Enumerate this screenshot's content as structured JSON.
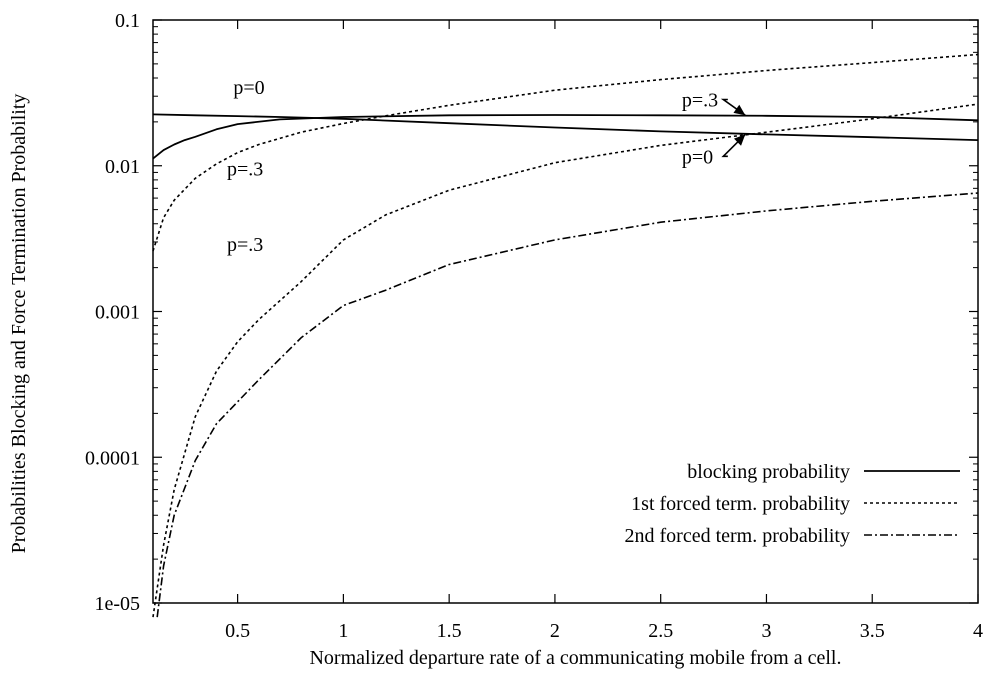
{
  "chart_data": {
    "type": "line",
    "xlabel": "Normalized departure rate of a communicating mobile from a cell.",
    "ylabel": "Probabilities Blocking and Force Termination Probability",
    "xlim": [
      0.1,
      4
    ],
    "ylim": [
      1e-05,
      0.1
    ],
    "y_scale": "log",
    "grid": false,
    "legend_position": "bottom-right",
    "x_ticks": [
      {
        "value": 0.5,
        "label": "0.5"
      },
      {
        "value": 1,
        "label": "1"
      },
      {
        "value": 1.5,
        "label": "1.5"
      },
      {
        "value": 2,
        "label": "2"
      },
      {
        "value": 2.5,
        "label": "2.5"
      },
      {
        "value": 3,
        "label": "3"
      },
      {
        "value": 3.5,
        "label": "3.5"
      },
      {
        "value": 4,
        "label": "4"
      }
    ],
    "y_ticks": [
      {
        "value": 0.1,
        "label": "0.1"
      },
      {
        "value": 0.01,
        "label": "0.01"
      },
      {
        "value": 0.001,
        "label": "0.001"
      },
      {
        "value": 0.0001,
        "label": "0.0001"
      },
      {
        "value": 1e-05,
        "label": "1e-05"
      }
    ],
    "legend": [
      {
        "label": "blocking probability",
        "style": "solid"
      },
      {
        "label": "1st forced term. probability",
        "style": "dotted"
      },
      {
        "label": "2nd forced term. probability",
        "style": "dashdot"
      }
    ],
    "series": [
      {
        "legend_index": 0,
        "style": "solid",
        "x": [
          0.1,
          0.3,
          0.5,
          0.7,
          1.0,
          1.5,
          2.0,
          2.5,
          3.0,
          3.5,
          4.0
        ],
        "y": [
          0.0225,
          0.0222,
          0.0219,
          0.0216,
          0.021,
          0.0196,
          0.0183,
          0.0172,
          0.0164,
          0.0157,
          0.015
        ]
      },
      {
        "legend_index": 0,
        "style": "solid",
        "x": [
          0.1,
          0.15,
          0.2,
          0.25,
          0.3,
          0.4,
          0.5,
          0.7,
          1.0,
          1.5,
          2.0,
          2.5,
          3.0,
          3.5,
          4.0
        ],
        "y": [
          0.0112,
          0.0128,
          0.014,
          0.015,
          0.0158,
          0.0178,
          0.0193,
          0.0208,
          0.0216,
          0.0222,
          0.0223,
          0.0222,
          0.022,
          0.0216,
          0.0205
        ]
      },
      {
        "legend_index": 1,
        "style": "dotted",
        "x": [
          0.1,
          0.15,
          0.2,
          0.3,
          0.4,
          0.5,
          0.6,
          0.8,
          1.0,
          1.2,
          1.5,
          2.0,
          2.5,
          3.0,
          3.5,
          4.0
        ],
        "y": [
          0.0026,
          0.0044,
          0.0058,
          0.0082,
          0.0103,
          0.0123,
          0.014,
          0.017,
          0.0195,
          0.022,
          0.026,
          0.033,
          0.039,
          0.045,
          0.051,
          0.058
        ]
      },
      {
        "legend_index": 1,
        "style": "dotted",
        "x": [
          0.1,
          0.15,
          0.2,
          0.3,
          0.4,
          0.5,
          0.6,
          0.8,
          1.0,
          1.2,
          1.5,
          2.0,
          2.5,
          3.0,
          3.5,
          4.0
        ],
        "y": [
          8e-06,
          2.5e-05,
          6e-05,
          0.00019,
          0.00039,
          0.00062,
          0.00088,
          0.0016,
          0.0031,
          0.0046,
          0.0068,
          0.0105,
          0.0138,
          0.017,
          0.021,
          0.0265
        ]
      },
      {
        "legend_index": 2,
        "style": "dashdot",
        "x": [
          0.12,
          0.15,
          0.2,
          0.3,
          0.4,
          0.5,
          0.6,
          0.8,
          1.0,
          1.2,
          1.5,
          2.0,
          2.5,
          3.0,
          3.5,
          4.0
        ],
        "y": [
          8e-06,
          1.8e-05,
          4e-05,
          9.5e-05,
          0.00017,
          0.00024,
          0.00034,
          0.00066,
          0.0011,
          0.0014,
          0.0021,
          0.0031,
          0.0041,
          0.0049,
          0.0057,
          0.0065
        ]
      }
    ],
    "annotations": [
      {
        "text": "p=0",
        "x": 0.48,
        "y": 0.031
      },
      {
        "text": "p=.3",
        "x": 0.45,
        "y": 0.0086
      },
      {
        "text": "p=.3",
        "x": 0.45,
        "y": 0.0026
      },
      {
        "text": "p=.3",
        "x": 2.6,
        "y": 0.0255,
        "arrow_to": [
          2.9,
          0.0222
        ]
      },
      {
        "text": "p=0",
        "x": 2.6,
        "y": 0.0104,
        "arrow_to": [
          2.9,
          0.0164
        ]
      }
    ]
  }
}
